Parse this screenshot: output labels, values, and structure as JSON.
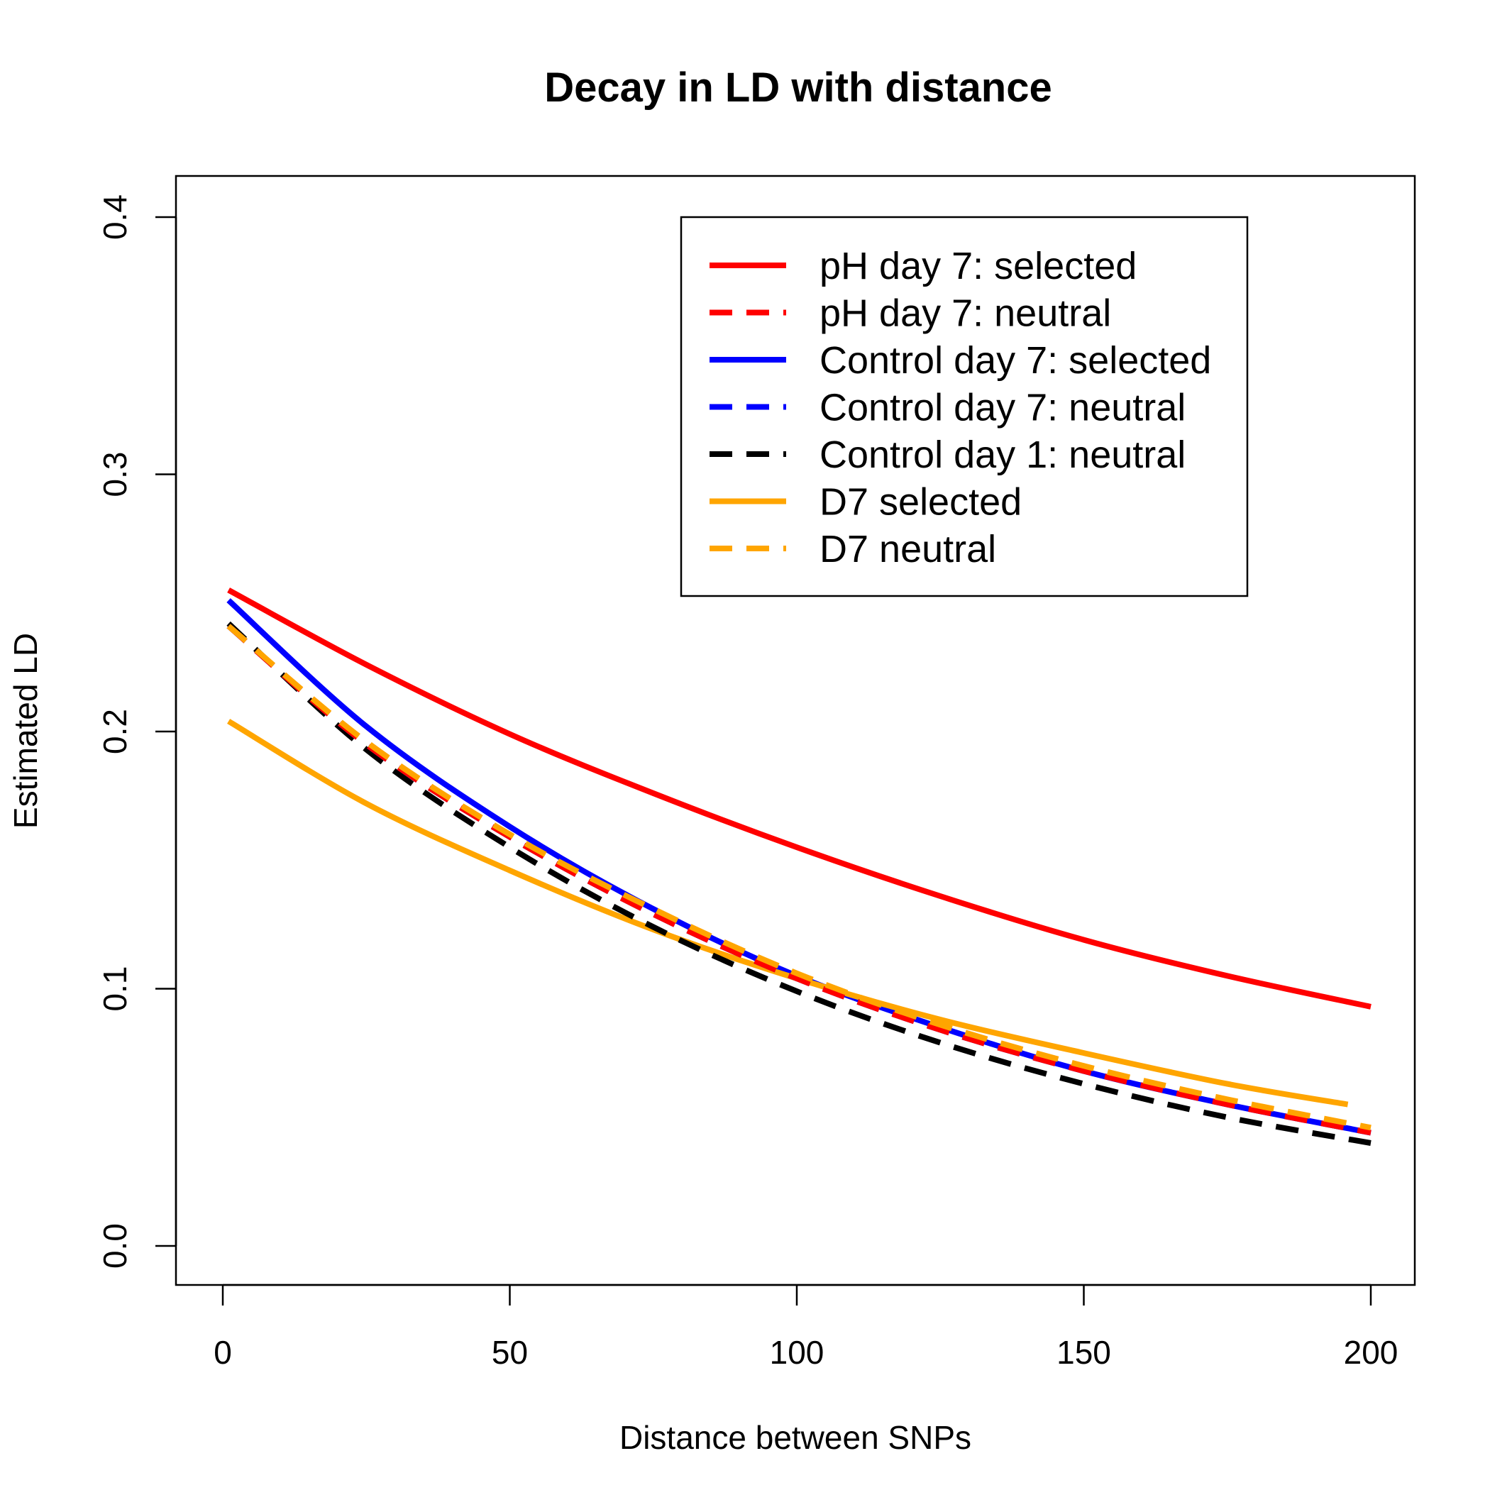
{
  "chart_data": {
    "type": "line",
    "title": "Decay in LD with distance",
    "xlabel": "Distance between SNPs",
    "ylabel": "Estimated LD",
    "xlim": [
      0,
      200
    ],
    "ylim": [
      0.0,
      0.4
    ],
    "xticks": [
      "0",
      "50",
      "100",
      "150",
      "200"
    ],
    "yticks": [
      "0.0",
      "0.1",
      "0.2",
      "0.3",
      "0.4"
    ],
    "x": [
      1,
      25,
      50,
      75,
      100,
      125,
      150,
      175,
      200
    ],
    "legend_position": "top-right",
    "grid": false,
    "series": [
      {
        "name": "pH day 7: selected",
        "color": "#ff0000",
        "dash": "solid",
        "x": [
          1,
          25,
          50,
          75,
          100,
          125,
          150,
          175,
          200
        ],
        "values": [
          0.255,
          0.226,
          0.199,
          0.176,
          0.155,
          0.136,
          0.119,
          0.105,
          0.093
        ]
      },
      {
        "name": "pH day 7: neutral",
        "color": "#ff0000",
        "dash": "dashed",
        "x": [
          1,
          25,
          50,
          75,
          100,
          125,
          150,
          175,
          200
        ],
        "values": [
          0.241,
          0.195,
          0.159,
          0.129,
          0.104,
          0.084,
          0.068,
          0.055,
          0.044
        ]
      },
      {
        "name": "Control day 7: selected",
        "color": "#0000ff",
        "dash": "solid",
        "x": [
          1,
          25,
          50,
          75,
          100,
          125,
          150,
          175,
          200
        ],
        "values": [
          0.251,
          0.202,
          0.163,
          0.131,
          0.105,
          0.085,
          0.068,
          0.055,
          0.044
        ]
      },
      {
        "name": "Control day 7: neutral",
        "color": "#0000ff",
        "dash": "dashed",
        "x": [
          1,
          25,
          50,
          75,
          100,
          125,
          150,
          175,
          200
        ],
        "values": [
          0.241,
          0.195,
          0.159,
          0.129,
          0.104,
          0.084,
          0.068,
          0.055,
          0.044
        ]
      },
      {
        "name": "Control day 1: neutral",
        "color": "#000000",
        "dash": "dashed",
        "x": [
          1,
          25,
          50,
          75,
          100,
          125,
          150,
          175,
          200
        ],
        "values": [
          0.242,
          0.193,
          0.155,
          0.124,
          0.099,
          0.079,
          0.063,
          0.05,
          0.04
        ]
      },
      {
        "name": "D7 selected",
        "color": "#ffa500",
        "dash": "solid",
        "x": [
          1,
          25,
          50,
          75,
          100,
          125,
          150,
          175,
          196
        ],
        "values": [
          0.204,
          0.172,
          0.146,
          0.123,
          0.104,
          0.088,
          0.075,
          0.063,
          0.055
        ]
      },
      {
        "name": "D7 neutral",
        "color": "#ffa500",
        "dash": "dashed",
        "x": [
          1,
          25,
          50,
          75,
          100,
          125,
          150,
          175,
          200
        ],
        "values": [
          0.241,
          0.196,
          0.16,
          0.131,
          0.106,
          0.086,
          0.07,
          0.057,
          0.046
        ]
      }
    ]
  }
}
